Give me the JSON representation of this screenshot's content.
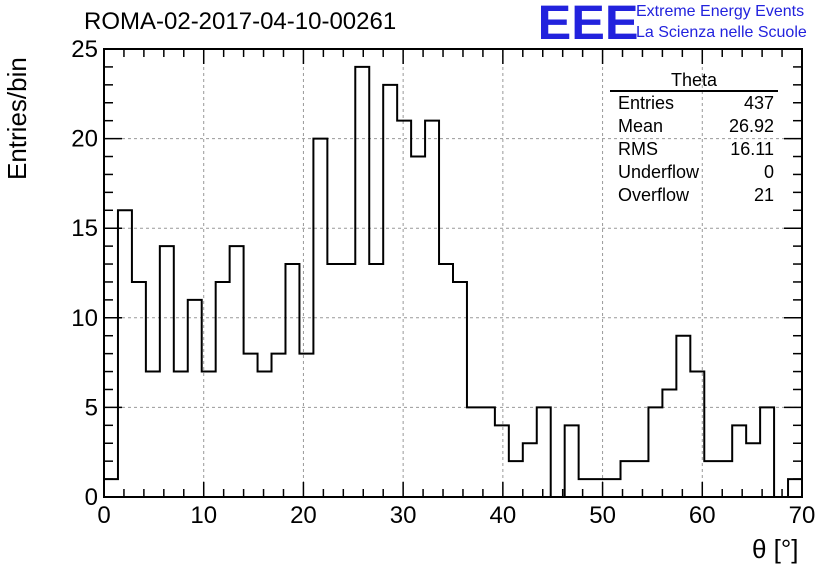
{
  "header": {
    "title": "ROMA-02-2017-04-10-00261",
    "logo_text": "EEE",
    "logo_line1": "Extreme Energy Events",
    "logo_line2": "La Scienza nelle Scuole"
  },
  "stats": {
    "title": "Theta",
    "rows": [
      {
        "label": "Entries",
        "value": "437"
      },
      {
        "label": "Mean",
        "value": "26.92"
      },
      {
        "label": "RMS",
        "value": "16.11"
      },
      {
        "label": "Underflow",
        "value": "0"
      },
      {
        "label": "Overflow",
        "value": "21"
      }
    ]
  },
  "colors": {
    "logo": "#2222dd",
    "line": "#000000",
    "grid": "#999999"
  },
  "chart_data": {
    "type": "histogram",
    "title": "ROMA-02-2017-04-10-00261",
    "xlabel": "θ [°]",
    "ylabel": "Entries/bin",
    "xlim": [
      0,
      70
    ],
    "ylim": [
      0,
      25
    ],
    "bin_width": 1.4,
    "xticks": [
      0,
      10,
      20,
      30,
      40,
      50,
      60,
      70
    ],
    "yticks": [
      0,
      5,
      10,
      15,
      20,
      25
    ],
    "grid": true,
    "values": [
      1,
      16,
      12,
      7,
      14,
      7,
      11,
      7,
      12,
      14,
      8,
      7,
      8,
      13,
      8,
      20,
      13,
      13,
      24,
      13,
      23,
      21,
      19,
      21,
      13,
      12,
      5,
      5,
      4,
      2,
      3,
      5,
      0,
      4,
      1,
      1,
      1,
      2,
      2,
      5,
      6,
      9,
      7,
      2,
      2,
      4,
      3,
      5,
      0,
      1
    ]
  }
}
